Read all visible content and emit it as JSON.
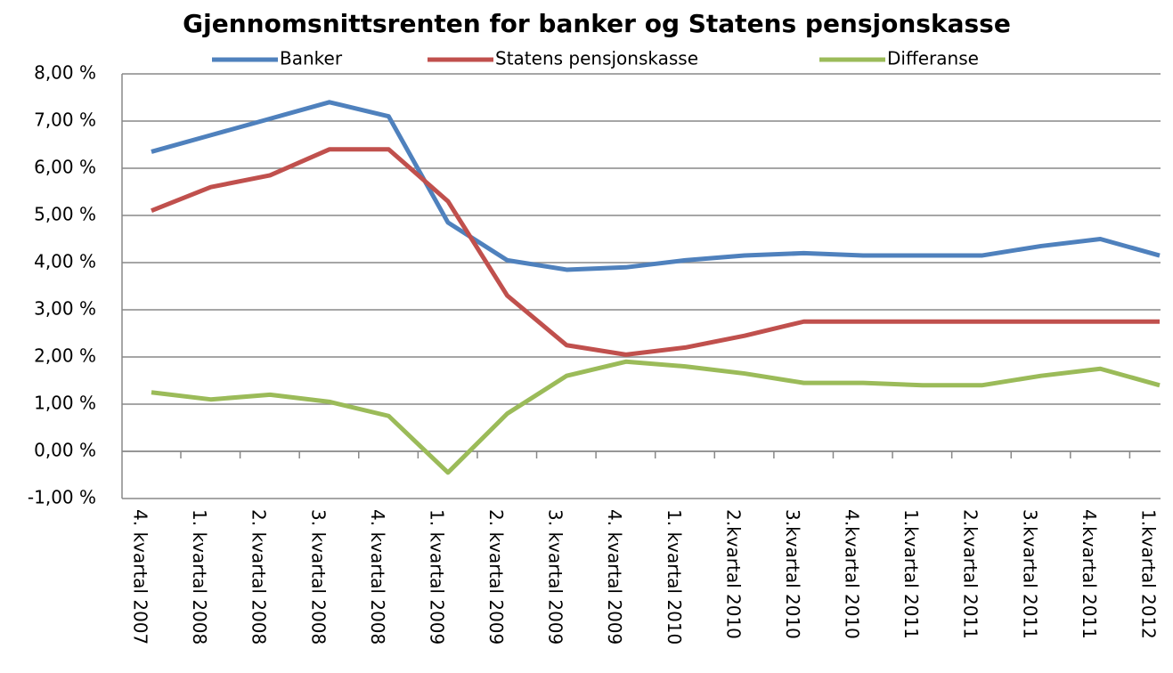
{
  "chart_data": {
    "type": "line",
    "title": "Gjennomsnittsrenten for banker og Statens pensjonskasse",
    "categories": [
      "4. kvartal 2007",
      "1. kvartal 2008",
      "2. kvartal 2008",
      "3. kvartal 2008",
      "4. kvartal 2008",
      "1. kvartal 2009",
      "2. kvartal 2009",
      "3. kvartal 2009",
      "4. kvartal 2009",
      "1. kvartal 2010",
      "2.kvartal 2010",
      "3.kvartal 2010",
      "4.kvartal 2010",
      "1.kvartal 2011",
      "2.kvartal 2011",
      "3.kvartal 2011",
      "4.kvartal 2011",
      "1.kvartal 2012"
    ],
    "series": [
      {
        "name": "Banker",
        "color": "#4f81bd",
        "values": [
          6.35,
          6.7,
          7.05,
          7.4,
          7.1,
          4.85,
          4.05,
          3.85,
          3.9,
          4.05,
          4.15,
          4.2,
          4.15,
          4.15,
          4.15,
          4.35,
          4.5,
          4.15
        ]
      },
      {
        "name": "Statens pensjonskasse",
        "color": "#c0504d",
        "values": [
          5.1,
          5.6,
          5.85,
          6.4,
          6.4,
          5.3,
          3.3,
          2.25,
          2.05,
          2.2,
          2.45,
          2.75,
          2.75,
          2.75,
          2.75,
          2.75,
          2.75,
          2.75
        ]
      },
      {
        "name": "Differanse",
        "color": "#9bbb59",
        "values": [
          1.25,
          1.1,
          1.2,
          1.05,
          0.75,
          -0.45,
          0.8,
          1.6,
          1.9,
          1.8,
          1.65,
          1.45,
          1.45,
          1.4,
          1.4,
          1.6,
          1.75,
          1.4
        ]
      }
    ],
    "ylim": [
      -1,
      8
    ],
    "yticks": [
      {
        "value": -1,
        "label": "-1,00 %"
      },
      {
        "value": 0,
        "label": "0,00 %"
      },
      {
        "value": 1,
        "label": "1,00 %"
      },
      {
        "value": 2,
        "label": "2,00 %"
      },
      {
        "value": 3,
        "label": "3,00 %"
      },
      {
        "value": 4,
        "label": "4,00 %"
      },
      {
        "value": 5,
        "label": "5,00 %"
      },
      {
        "value": 6,
        "label": "6,00 %"
      },
      {
        "value": 7,
        "label": "7,00 %"
      },
      {
        "value": 8,
        "label": "8,00 %"
      }
    ],
    "grid": true,
    "legend": "top"
  }
}
